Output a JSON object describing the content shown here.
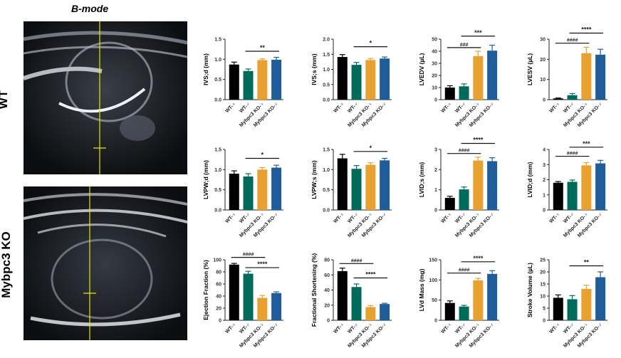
{
  "figure": {
    "title": "B-mode",
    "row_labels": [
      "WT",
      "Mybpc3 KO"
    ]
  },
  "colors": {
    "wt_female": "#000000",
    "wt_male": "#006B5A",
    "ko_female": "#E8A030",
    "ko_male": "#1F5D9A",
    "guide_line": "#E6E600"
  },
  "chart_data": [
    {
      "type": "bar",
      "ylabel": "IVS;d (mm)",
      "ylim": [
        0,
        1.5
      ],
      "ticks": [
        "0.0",
        "0.5",
        "1.0",
        "1.5"
      ],
      "tickvals": [
        0,
        0.5,
        1,
        1.5
      ],
      "categories": [
        "WT-♀",
        "WT-♂",
        "Mybpc3 KO-♀",
        "Mybpc3 KO-♂"
      ],
      "values": [
        0.87,
        0.71,
        0.98,
        0.99
      ],
      "errors": [
        0.06,
        0.05,
        0.03,
        0.06
      ],
      "sig": [
        {
          "from": 1,
          "to": 3,
          "label": "**",
          "y": 1.2
        }
      ]
    },
    {
      "type": "bar",
      "ylabel": "IVS;s (mm)",
      "ylim": [
        0,
        2
      ],
      "ticks": [
        "0.0",
        "0.5",
        "1.0",
        "1.5",
        "2.0"
      ],
      "tickvals": [
        0,
        0.5,
        1,
        1.5,
        2
      ],
      "categories": [
        "WT-♀",
        "WT-♂",
        "Mybpc3 KO-♀",
        "Mybpc3 KO-♂"
      ],
      "values": [
        1.41,
        1.15,
        1.31,
        1.36
      ],
      "errors": [
        0.08,
        0.08,
        0.05,
        0.05
      ],
      "sig": [
        {
          "from": 1,
          "to": 3,
          "label": "*",
          "y": 1.75
        }
      ]
    },
    {
      "type": "bar",
      "ylabel": "LVEDV (µL)",
      "ylim": [
        0,
        50
      ],
      "ticks": [
        "0",
        "10",
        "20",
        "30",
        "40",
        "50"
      ],
      "tickvals": [
        0,
        10,
        20,
        30,
        40,
        50
      ],
      "categories": [
        "WT-♀",
        "WT-♂",
        "Mybpc3 KO-♀",
        "Mybpc3 KO-♂"
      ],
      "values": [
        10,
        11,
        36,
        40.5
      ],
      "errors": [
        1.5,
        2,
        4,
        4.5
      ],
      "sig": [
        {
          "from": 0,
          "to": 2,
          "label": "###",
          "y": 43
        },
        {
          "from": 1,
          "to": 3,
          "label": "***",
          "y": 52.5
        }
      ]
    },
    {
      "type": "bar",
      "ylabel": "LVESV (µL)",
      "ylim": [
        0,
        30
      ],
      "ticks": [
        "0",
        "10",
        "20",
        "30"
      ],
      "tickvals": [
        0,
        10,
        20,
        30
      ],
      "categories": [
        "WT-♀",
        "WT-♂",
        "Mybpc3 KO-♀",
        "Mybpc3 KO-♂"
      ],
      "values": [
        0.6,
        2.2,
        23,
        22.3
      ],
      "errors": [
        0.2,
        0.8,
        3,
        2.7
      ],
      "sig": [
        {
          "from": 0,
          "to": 2,
          "label": "####",
          "y": 28
        },
        {
          "from": 1,
          "to": 3,
          "label": "****",
          "y": 33
        }
      ]
    },
    {
      "type": "bar",
      "ylabel": "LVPW;d (mm)",
      "ylim": [
        0,
        1.5
      ],
      "ticks": [
        "0.0",
        "0.5",
        "1.0",
        "1.5"
      ],
      "tickvals": [
        0,
        0.5,
        1,
        1.5
      ],
      "categories": [
        "WT-♀",
        "WT-♂",
        "Mybpc3 KO-♀",
        "Mybpc3 KO-♂"
      ],
      "values": [
        0.9,
        0.83,
        1.0,
        1.05
      ],
      "errors": [
        0.07,
        0.07,
        0.05,
        0.06
      ],
      "sig": [
        {
          "from": 1,
          "to": 3,
          "label": "*",
          "y": 1.28
        }
      ]
    },
    {
      "type": "bar",
      "ylabel": "LVPW;s (mm)",
      "ylim": [
        0,
        1.5
      ],
      "ticks": [
        "0.0",
        "0.5",
        "1.0",
        "1.5"
      ],
      "tickvals": [
        0,
        0.5,
        1,
        1.5
      ],
      "categories": [
        "WT-♀",
        "WT-♂",
        "Mybpc3 KO-♀",
        "Mybpc3 KO-♂"
      ],
      "values": [
        1.28,
        1.02,
        1.12,
        1.23
      ],
      "errors": [
        0.1,
        0.08,
        0.05,
        0.05
      ],
      "sig": [
        {
          "from": 1,
          "to": 3,
          "label": "*",
          "y": 1.45
        }
      ]
    },
    {
      "type": "bar",
      "ylabel": "LVID;s (mm)",
      "ylim": [
        0,
        3
      ],
      "ticks": [
        "0",
        "1",
        "2",
        "3"
      ],
      "tickvals": [
        0,
        1,
        2,
        3
      ],
      "categories": [
        "WT-♀",
        "WT-♂",
        "Mybpc3 KO-♀",
        "Mybpc3 KO-♂"
      ],
      "values": [
        0.6,
        1.02,
        2.45,
        2.42
      ],
      "errors": [
        0.08,
        0.12,
        0.17,
        0.17
      ],
      "sig": [
        {
          "from": 0,
          "to": 2,
          "label": "####",
          "y": 2.8
        },
        {
          "from": 1,
          "to": 3,
          "label": "****",
          "y": 3.3
        }
      ]
    },
    {
      "type": "bar",
      "ylabel": "LVID;d (mm)",
      "ylim": [
        0,
        4
      ],
      "ticks": [
        "0",
        "1",
        "2",
        "3",
        "4"
      ],
      "tickvals": [
        0,
        1,
        2,
        3,
        4
      ],
      "categories": [
        "WT-♀",
        "WT-♂",
        "Mybpc3 KO-♀",
        "Mybpc3 KO-♂"
      ],
      "values": [
        1.8,
        1.86,
        2.95,
        3.08
      ],
      "errors": [
        0.08,
        0.12,
        0.18,
        0.2
      ],
      "sig": [
        {
          "from": 0,
          "to": 2,
          "label": "####",
          "y": 3.55
        },
        {
          "from": 1,
          "to": 3,
          "label": "***",
          "y": 4.15
        }
      ]
    },
    {
      "type": "bar",
      "ylabel": "Ejection Fraction (%)",
      "ylim": [
        0,
        100
      ],
      "ticks": [
        "0",
        "20",
        "40",
        "60",
        "80",
        "100"
      ],
      "tickvals": [
        0,
        20,
        40,
        60,
        80,
        100
      ],
      "categories": [
        "WT-♀",
        "WT-♂",
        "Mybpc3 KO-♀",
        "Mybpc3 KO-♂"
      ],
      "values": [
        92,
        77,
        37,
        45
      ],
      "errors": [
        2,
        4,
        4,
        2
      ],
      "sig": [
        {
          "from": 0,
          "to": 2,
          "label": "####",
          "y": 104
        },
        {
          "from": 1,
          "to": 3,
          "label": "****",
          "y": 87
        }
      ]
    },
    {
      "type": "bar",
      "ylabel": "Fractional Shortening (%)",
      "ylim": [
        0,
        80
      ],
      "ticks": [
        "0",
        "20",
        "40",
        "60",
        "80"
      ],
      "tickvals": [
        0,
        20,
        40,
        60,
        80
      ],
      "categories": [
        "WT-♀",
        "WT-♂",
        "Mybpc3 KO-♀",
        "Mybpc3 KO-♂"
      ],
      "values": [
        65,
        44,
        17.5,
        21.5
      ],
      "errors": [
        4,
        4,
        2,
        1
      ],
      "sig": [
        {
          "from": 0,
          "to": 2,
          "label": "####",
          "y": 75
        },
        {
          "from": 1,
          "to": 3,
          "label": "****",
          "y": 56
        }
      ]
    },
    {
      "type": "bar",
      "ylabel": "LVd Mass (mg)",
      "ylim": [
        0,
        150
      ],
      "ticks": [
        "0",
        "50",
        "100",
        "150"
      ],
      "tickvals": [
        0,
        50,
        100,
        150
      ],
      "categories": [
        "WT-♀",
        "WT-♂",
        "Mybpc3 KO-♀",
        "Mybpc3 KO-♂"
      ],
      "values": [
        43,
        34,
        99,
        115
      ],
      "errors": [
        5,
        3,
        5,
        8
      ],
      "sig": [
        {
          "from": 0,
          "to": 2,
          "label": "####",
          "y": 117
        },
        {
          "from": 1,
          "to": 3,
          "label": "****",
          "y": 145
        }
      ]
    },
    {
      "type": "bar",
      "ylabel": "Stroke Volume (µL)",
      "ylim": [
        0,
        25
      ],
      "ticks": [
        "0",
        "5",
        "10",
        "15",
        "20",
        "25"
      ],
      "tickvals": [
        0,
        5,
        10,
        15,
        20,
        25
      ],
      "categories": [
        "WT-♀",
        "WT-♂",
        "Mybpc3 KO-♀",
        "Mybpc3 KO-♂"
      ],
      "values": [
        9.3,
        8.7,
        13,
        17.8
      ],
      "errors": [
        1.2,
        1.5,
        1.5,
        2.2
      ],
      "sig": [
        {
          "from": 1,
          "to": 3,
          "label": "**",
          "y": 22.5
        }
      ]
    }
  ]
}
